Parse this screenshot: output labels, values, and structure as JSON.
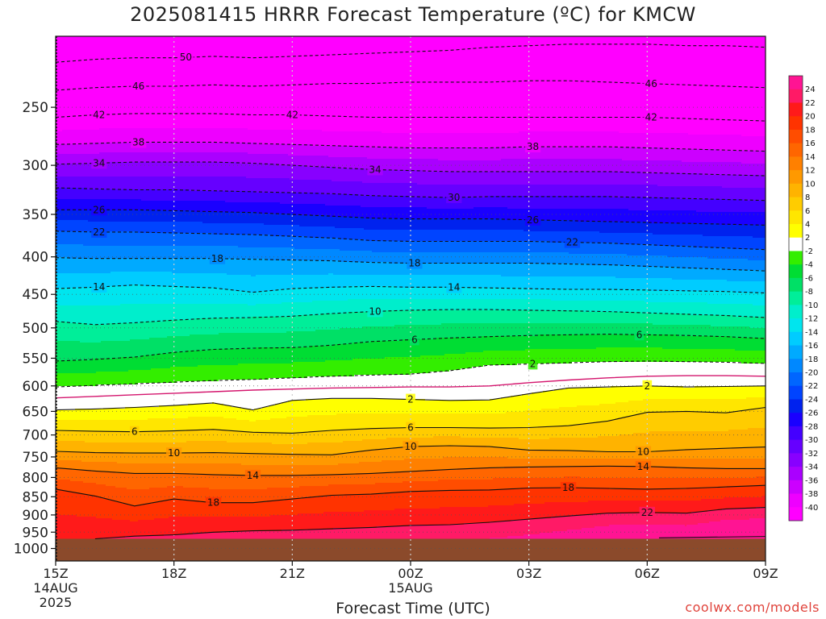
{
  "chart_data": {
    "type": "heatmap",
    "title": "2025081415 HRRR Forecast Temperature (ºC) for KMCW",
    "xlabel": "Forecast Time (UTC)",
    "ylabel": "",
    "credit": "coolwx.com/models",
    "y_scale": "log-pressure",
    "ylim": [
      1040,
      200
    ],
    "xlim": [
      "15Z 14AUG 2025",
      "09Z 15AUG 2025"
    ],
    "x_ticks": [
      {
        "lines": [
          "15Z",
          "14AUG",
          "2025"
        ]
      },
      {
        "lines": [
          "18Z"
        ]
      },
      {
        "lines": [
          "21Z"
        ]
      },
      {
        "lines": [
          "00Z",
          "15AUG"
        ]
      },
      {
        "lines": [
          "03Z"
        ]
      },
      {
        "lines": [
          "06Z"
        ]
      },
      {
        "lines": [
          "09Z"
        ]
      }
    ],
    "x_hours": [
      0,
      3,
      6,
      9,
      12,
      15,
      18
    ],
    "y_ticks": [
      250,
      300,
      350,
      400,
      450,
      500,
      550,
      600,
      650,
      700,
      750,
      800,
      850,
      900,
      950,
      1000
    ],
    "ground_pressure": 970,
    "contour_hours": [
      0,
      1,
      2,
      3,
      4,
      5,
      6,
      7,
      8,
      9,
      10,
      11,
      12,
      13,
      14,
      15,
      16,
      17,
      18
    ],
    "contours": [
      {
        "level": -50,
        "p": [
          217,
          215,
          214,
          214,
          213,
          214,
          213,
          212,
          211,
          210,
          209,
          207,
          206,
          205,
          205,
          205,
          206,
          206,
          207
        ]
      },
      {
        "level": -46,
        "p": [
          237,
          235,
          234,
          234,
          233,
          234,
          233,
          232,
          232,
          231,
          231,
          231,
          230,
          230,
          231,
          232,
          233,
          234,
          235
        ]
      },
      {
        "level": -42,
        "p": [
          258,
          256,
          255,
          255,
          255,
          256,
          256,
          257,
          258,
          258,
          258,
          258,
          258,
          258,
          258,
          258,
          259,
          260,
          261
        ]
      },
      {
        "level": -38,
        "p": [
          281,
          280,
          279,
          279,
          279,
          280,
          281,
          282,
          283,
          284,
          284,
          284,
          283,
          283,
          283,
          284,
          285,
          286,
          287
        ]
      },
      {
        "level": -34,
        "p": [
          299,
          298,
          297,
          297,
          297,
          298,
          300,
          302,
          304,
          305,
          306,
          306,
          306,
          306,
          306,
          307,
          308,
          309,
          310
        ]
      },
      {
        "level": -30,
        "p": [
          322,
          323,
          324,
          324,
          325,
          326,
          327,
          328,
          330,
          331,
          332,
          331,
          331,
          331,
          331,
          332,
          333,
          334,
          335
        ]
      },
      {
        "level": -26,
        "p": [
          345,
          345,
          345,
          346,
          347,
          348,
          350,
          352,
          354,
          355,
          355,
          355,
          356,
          357,
          358,
          359,
          360,
          361,
          362
        ]
      },
      {
        "level": -22,
        "p": [
          369,
          370,
          370,
          371,
          372,
          373,
          375,
          377,
          380,
          381,
          381,
          381,
          381,
          382,
          383,
          385,
          387,
          389,
          391
        ]
      },
      {
        "level": -18,
        "p": [
          401,
          402,
          402,
          402,
          402,
          403,
          404,
          405,
          407,
          408,
          408,
          408,
          408,
          409,
          410,
          412,
          414,
          416,
          418
        ]
      },
      {
        "level": -14,
        "p": [
          442,
          440,
          437,
          439,
          441,
          447,
          442,
          440,
          439,
          440,
          440,
          441,
          442,
          443,
          443,
          444,
          445,
          446,
          448
        ]
      },
      {
        "level": -10,
        "p": [
          490,
          495,
          492,
          488,
          485,
          484,
          482,
          478,
          475,
          473,
          472,
          472,
          473,
          474,
          475,
          477,
          479,
          481,
          484
        ]
      },
      {
        "level": -6,
        "p": [
          555,
          552,
          548,
          540,
          535,
          533,
          532,
          528,
          522,
          519,
          516,
          514,
          512,
          511,
          510,
          511,
          512,
          514,
          517
        ]
      },
      {
        "level": -2,
        "p": [
          602,
          599,
          596,
          593,
          590,
          588,
          585,
          582,
          580,
          578,
          572,
          562,
          560,
          558,
          556,
          555,
          556,
          557,
          559
        ]
      },
      {
        "level": 0,
        "p": [
          623,
          620,
          617,
          614,
          611,
          608,
          606,
          604,
          603,
          602,
          602,
          600,
          594,
          589,
          585,
          582,
          581,
          581,
          582
        ]
      },
      {
        "level": 2,
        "p": [
          647,
          645,
          642,
          638,
          633,
          647,
          628,
          624,
          624,
          626,
          628,
          627,
          615,
          604,
          602,
          600,
          602,
          601,
          600
        ]
      },
      {
        "level": 6,
        "p": [
          690,
          692,
          693,
          691,
          688,
          694,
          696,
          690,
          686,
          684,
          684,
          685,
          684,
          680,
          670,
          652,
          650,
          653,
          642
        ]
      },
      {
        "level": 10,
        "p": [
          737,
          740,
          741,
          741,
          740,
          742,
          744,
          745,
          734,
          726,
          724,
          726,
          734,
          735,
          738,
          738,
          733,
          730,
          727
        ]
      },
      {
        "level": 14,
        "p": [
          776,
          784,
          790,
          790,
          793,
          795,
          795,
          793,
          790,
          785,
          780,
          776,
          774,
          773,
          772,
          773,
          776,
          778,
          778
        ]
      },
      {
        "level": 18,
        "p": [
          830,
          848,
          875,
          856,
          866,
          866,
          856,
          846,
          843,
          836,
          833,
          832,
          827,
          826,
          828,
          830,
          828,
          824,
          820
        ]
      },
      {
        "level": 22,
        "p": [
          null,
          970,
          962,
          958,
          950,
          946,
          944,
          940,
          936,
          930,
          928,
          921,
          912,
          903,
          895,
          893,
          895,
          883,
          879
        ]
      }
    ],
    "contour_labels": [
      {
        "level": -50,
        "text": "50",
        "hour": 3.3
      },
      {
        "level": -46,
        "text": "46",
        "hour": 2.1
      },
      {
        "level": -46,
        "text": "46",
        "hour": 15.1
      },
      {
        "level": -42,
        "text": "42",
        "hour": 1.1
      },
      {
        "level": -42,
        "text": "42",
        "hour": 6.0
      },
      {
        "level": -42,
        "text": "42",
        "hour": 15.1
      },
      {
        "level": -38,
        "text": "38",
        "hour": 2.1
      },
      {
        "level": -38,
        "text": "38",
        "hour": 12.1
      },
      {
        "level": -34,
        "text": "34",
        "hour": 1.1
      },
      {
        "level": -34,
        "text": "34",
        "hour": 8.1
      },
      {
        "level": -30,
        "text": "30",
        "hour": 10.1
      },
      {
        "level": -26,
        "text": "26",
        "hour": 1.1
      },
      {
        "level": -26,
        "text": "26",
        "hour": 12.1
      },
      {
        "level": -22,
        "text": "22",
        "hour": 1.1
      },
      {
        "level": -22,
        "text": "22",
        "hour": 13.1
      },
      {
        "level": -18,
        "text": "18",
        "hour": 4.1
      },
      {
        "level": -18,
        "text": "18",
        "hour": 9.1
      },
      {
        "level": -14,
        "text": "14",
        "hour": 1.1
      },
      {
        "level": -14,
        "text": "14",
        "hour": 10.1
      },
      {
        "level": -10,
        "text": "10",
        "hour": 8.1
      },
      {
        "level": -6,
        "text": "6",
        "hour": 9.1
      },
      {
        "level": -6,
        "text": "6",
        "hour": 14.8
      },
      {
        "level": -2,
        "text": "2",
        "hour": 12.1
      },
      {
        "level": 2,
        "text": "2",
        "hour": 9.0
      },
      {
        "level": 2,
        "text": "2",
        "hour": 15.0
      },
      {
        "level": 6,
        "text": "6",
        "hour": 2.0
      },
      {
        "level": 6,
        "text": "6",
        "hour": 9.0
      },
      {
        "level": 10,
        "text": "10",
        "hour": 3.0
      },
      {
        "level": 10,
        "text": "10",
        "hour": 9.0
      },
      {
        "level": 10,
        "text": "10",
        "hour": 14.9
      },
      {
        "level": 14,
        "text": "14",
        "hour": 5.0
      },
      {
        "level": 14,
        "text": "14",
        "hour": 14.9
      },
      {
        "level": 18,
        "text": "18",
        "hour": 4.0
      },
      {
        "level": 18,
        "text": "18",
        "hour": 13.0
      },
      {
        "level": 22,
        "text": "22",
        "hour": 15.0
      }
    ],
    "colorbar": {
      "ticks": [
        "24",
        "22",
        "20",
        "18",
        "16",
        "14",
        "12",
        "10",
        "8",
        "6",
        "4",
        "2",
        "-2",
        "-4",
        "-6",
        "-8",
        "-10",
        "-12",
        "-14",
        "-16",
        "-18",
        "-20",
        "-22",
        "-24",
        "-26",
        "-28",
        "-30",
        "-32",
        "-34",
        "-36",
        "-38",
        "-40"
      ],
      "bands": [
        {
          "lo": 24,
          "color": "#ff1493"
        },
        {
          "lo": 22,
          "color": "#ff1a66"
        },
        {
          "lo": 20,
          "color": "#ff1a1a"
        },
        {
          "lo": 18,
          "color": "#ff3300"
        },
        {
          "lo": 16,
          "color": "#ff4d00"
        },
        {
          "lo": 14,
          "color": "#ff6600"
        },
        {
          "lo": 12,
          "color": "#ff8000"
        },
        {
          "lo": 10,
          "color": "#ff9900"
        },
        {
          "lo": 8,
          "color": "#ffb300"
        },
        {
          "lo": 6,
          "color": "#ffcc00"
        },
        {
          "lo": 4,
          "color": "#ffe600"
        },
        {
          "lo": 2,
          "color": "#ffff00"
        },
        {
          "lo": -2,
          "color": "#ffffff"
        },
        {
          "lo": -4,
          "color": "#33ee00"
        },
        {
          "lo": -6,
          "color": "#00dd33"
        },
        {
          "lo": -8,
          "color": "#00e066"
        },
        {
          "lo": -10,
          "color": "#00ee99"
        },
        {
          "lo": -12,
          "color": "#00eecc"
        },
        {
          "lo": -14,
          "color": "#00e5ee"
        },
        {
          "lo": -16,
          "color": "#00ccff"
        },
        {
          "lo": -18,
          "color": "#00aaff"
        },
        {
          "lo": -20,
          "color": "#0088ff"
        },
        {
          "lo": -22,
          "color": "#0066ff"
        },
        {
          "lo": -24,
          "color": "#0044ff"
        },
        {
          "lo": -26,
          "color": "#0022ee"
        },
        {
          "lo": -28,
          "color": "#1a00ff"
        },
        {
          "lo": -30,
          "color": "#4400ff"
        },
        {
          "lo": -32,
          "color": "#6600ff"
        },
        {
          "lo": -34,
          "color": "#8800ff"
        },
        {
          "lo": -36,
          "color": "#aa00ff"
        },
        {
          "lo": -38,
          "color": "#cc00ff"
        },
        {
          "lo": -40,
          "color": "#ee00ff"
        },
        {
          "lo": -99,
          "color": "#ff00ff"
        }
      ]
    },
    "colors": {
      "ground": "#8b4a2b",
      "freezing_line": "#d4166e",
      "grid": "#cccccc"
    }
  }
}
